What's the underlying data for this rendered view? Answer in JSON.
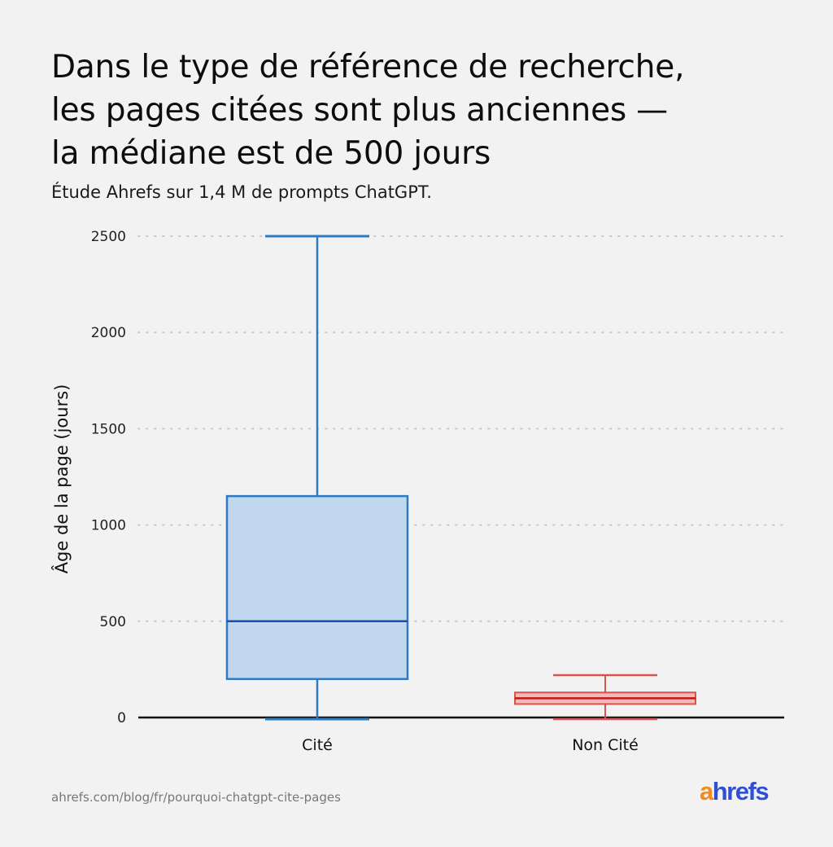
{
  "header": {
    "title_lines": [
      "Dans le type de référence de recherche,",
      "les pages citées sont plus anciennes —",
      "la médiane est de 500 jours"
    ],
    "subtitle": "Étude Ahrefs sur 1,4 M de prompts ChatGPT."
  },
  "footer": {
    "source": "ahrefs.com/blog/fr/pourquoi-chatgpt-cite-pages",
    "logo_a": "a",
    "logo_rest": "hrefs"
  },
  "colors": {
    "background": "#f2f2f3",
    "cite_stroke": "#2f7bc1",
    "cite_fill": "#c0d7ee",
    "cite_median": "#1a4fb0",
    "non_cite_stroke": "#d9534f",
    "non_cite_fill": "#f5b8b8",
    "non_cite_median": "#c01818",
    "axis": "#111111",
    "grid": "#c8c8c8"
  },
  "chart_data": {
    "type": "box",
    "title": "Dans le type de référence de recherche, les pages citées sont plus anciennes — la médiane est de 500 jours",
    "subtitle": "Étude Ahrefs sur 1,4 M de prompts ChatGPT.",
    "xlabel": "",
    "ylabel": "Âge de la page (jours)",
    "ylim": [
      0,
      2500
    ],
    "yticks": [
      0,
      500,
      1000,
      1500,
      2000,
      2500
    ],
    "grid": true,
    "categories": [
      "Cité",
      "Non Cité"
    ],
    "series": [
      {
        "name": "Cité",
        "min": 0,
        "q1": 200,
        "median": 500,
        "q3": 1150,
        "max": 2500
      },
      {
        "name": "Non Cité",
        "min": 0,
        "q1": 70,
        "median": 100,
        "q3": 130,
        "max": 220
      }
    ]
  }
}
